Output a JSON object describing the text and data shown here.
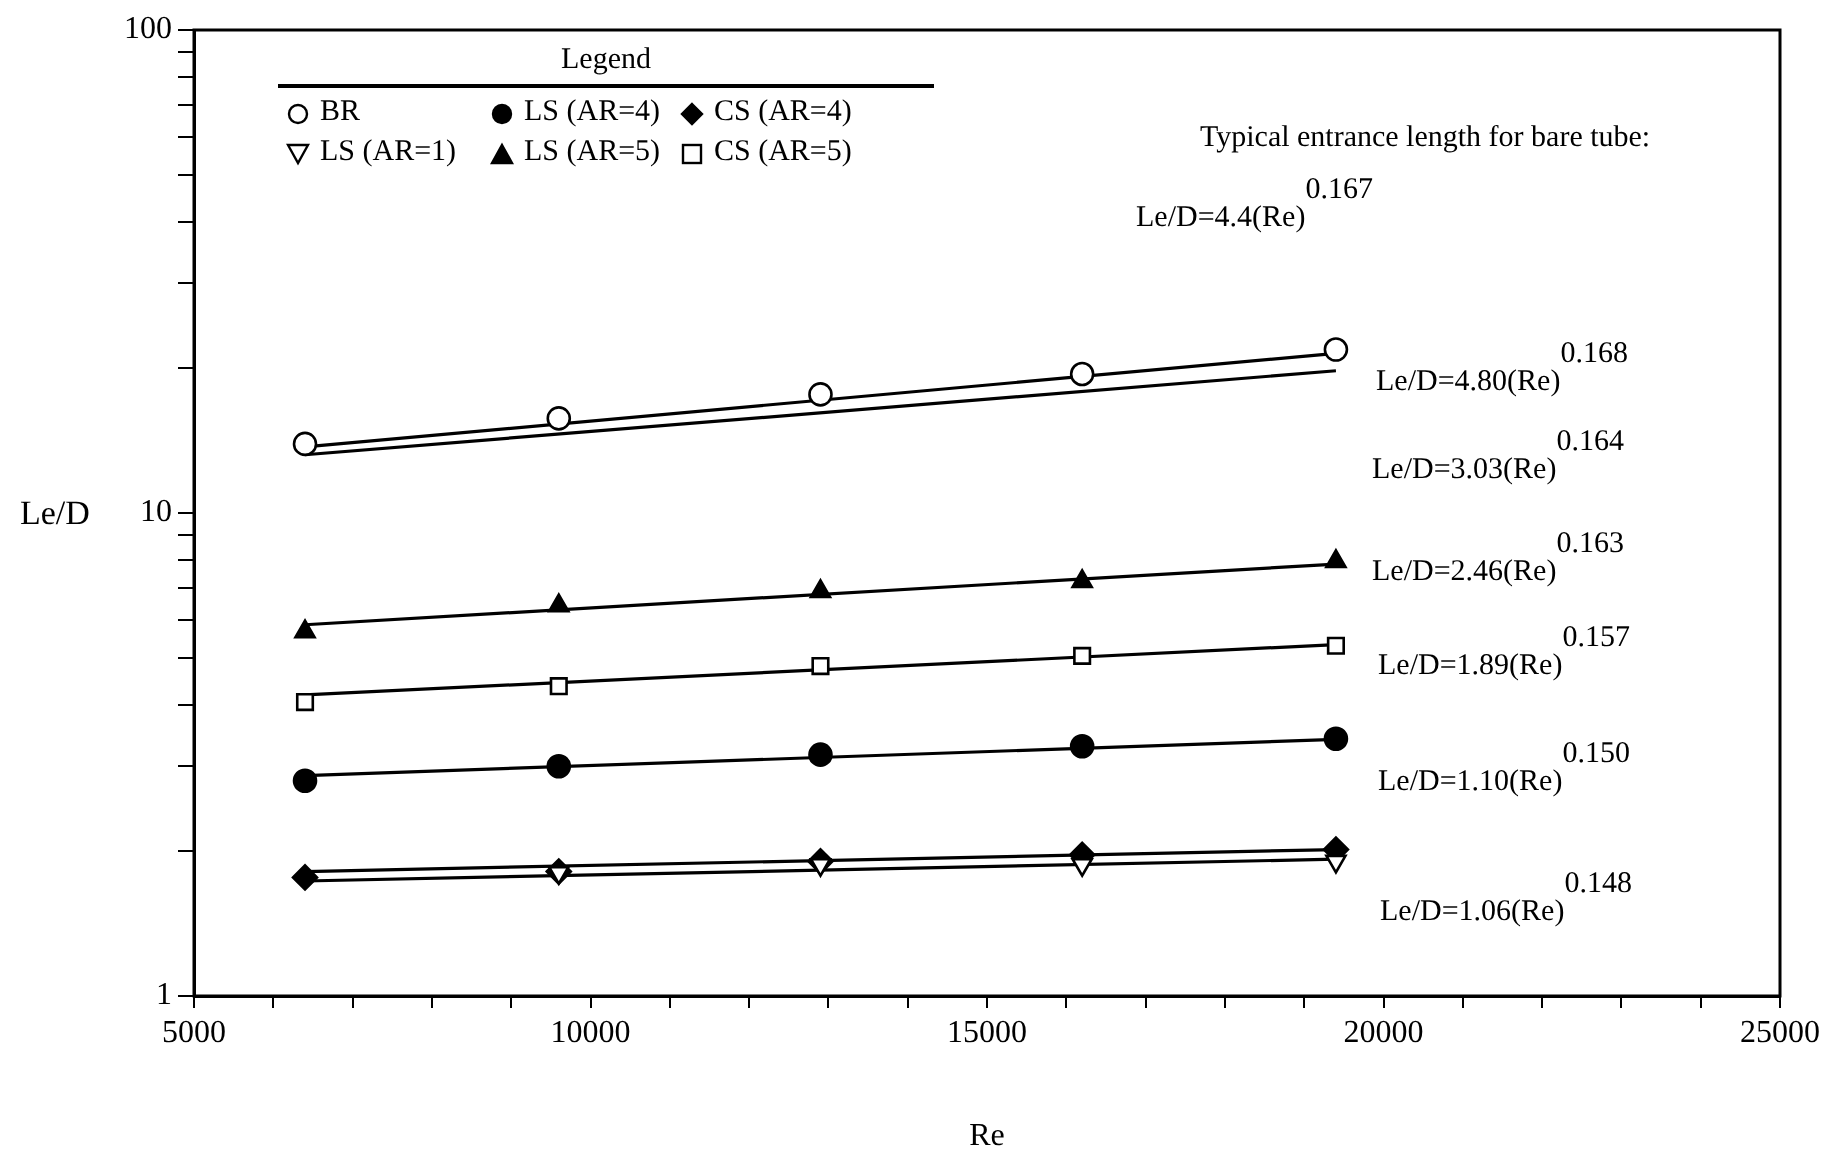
{
  "chart_data": {
    "type": "scatter",
    "xlabel": "Re",
    "ylabel": "Le/D",
    "legend_title": "Legend",
    "legend": "top left",
    "grid": false,
    "log": "y",
    "xlim": [
      5000,
      25000
    ],
    "xticks": [
      5000,
      {
        "value": 6000,
        "label": null
      },
      {
        "value": 7000,
        "label": null
      },
      {
        "value": 8000,
        "label": null
      },
      {
        "value": 9000,
        "label": null
      },
      10000,
      {
        "value": 11000,
        "label": null
      },
      {
        "value": 12000,
        "label": null
      },
      {
        "value": 13000,
        "label": null
      },
      {
        "value": 14000,
        "label": null
      },
      15000,
      {
        "value": 16000,
        "label": null
      },
      {
        "value": 17000,
        "label": null
      },
      {
        "value": 18000,
        "label": null
      },
      {
        "value": 19000,
        "label": null
      },
      20000,
      {
        "value": 21000,
        "label": null
      },
      {
        "value": 22000,
        "label": null
      },
      {
        "value": 23000,
        "label": null
      },
      {
        "value": 24000,
        "label": null
      },
      25000
    ],
    "ylim": [
      1,
      100
    ],
    "yticks": [
      1,
      {
        "value": 2,
        "label": null
      },
      {
        "value": 3,
        "label": null
      },
      {
        "value": 4,
        "label": null
      },
      {
        "value": 5,
        "label": null
      },
      {
        "value": 6,
        "label": null
      },
      {
        "value": 7,
        "label": null
      },
      {
        "value": 8,
        "label": null
      },
      {
        "value": 9,
        "label": null
      },
      10,
      {
        "value": 20,
        "label": null
      },
      {
        "value": 30,
        "label": null
      },
      {
        "value": 40,
        "label": null
      },
      {
        "value": 50,
        "label": null
      },
      {
        "value": 60,
        "label": null
      },
      {
        "value": 70,
        "label": null
      },
      {
        "value": 80,
        "label": null
      },
      {
        "value": 90,
        "label": null
      },
      100
    ],
    "x": [
      6400,
      9600,
      12900,
      16200,
      19400
    ],
    "series": [
      {
        "name": "BR",
        "color": "#000000",
        "marker": "circle-open",
        "values": [
          13.9,
          15.7,
          17.6,
          19.4,
          21.8
        ]
      },
      {
        "name": "LS (AR=4)",
        "color": "#000000",
        "marker": "circle",
        "values": [
          2.79,
          2.99,
          3.16,
          3.29,
          3.41
        ]
      },
      {
        "name": "CS (AR=4)",
        "color": "#000000",
        "marker": "diamond",
        "values": [
          1.76,
          1.81,
          1.9,
          1.96,
          2.01
        ]
      },
      {
        "name": "LS (AR=1)",
        "color": "#000000",
        "marker": "triangle-down-open",
        "values": [
          null,
          1.8,
          1.87,
          1.87,
          1.9
        ]
      },
      {
        "name": "LS (AR=5)",
        "color": "#000000",
        "marker": "triangle",
        "values": [
          5.68,
          6.43,
          6.88,
          7.22,
          7.94
        ]
      },
      {
        "name": "CS (AR=5)",
        "color": "#000000",
        "marker": "square-open",
        "values": [
          4.06,
          4.38,
          4.82,
          5.06,
          5.31
        ]
      },
      {
        "type": "line",
        "color": "#000000",
        "marker": "none",
        "values": [
          13.7,
          null,
          null,
          null,
          21.4
        ]
      },
      {
        "type": "line",
        "color": "#000000",
        "marker": "none",
        "values": [
          13.2,
          null,
          null,
          null,
          19.7
        ]
      },
      {
        "type": "line",
        "color": "#000000",
        "marker": "none",
        "values": [
          5.87,
          null,
          null,
          null,
          7.84
        ]
      },
      {
        "type": "line",
        "color": "#000000",
        "marker": "none",
        "values": [
          4.2,
          null,
          null,
          null,
          5.34
        ]
      },
      {
        "type": "line",
        "color": "#000000",
        "marker": "none",
        "values": [
          2.86,
          null,
          null,
          null,
          3.4
        ]
      },
      {
        "type": "line",
        "color": "#000000",
        "marker": "none",
        "values": [
          1.81,
          null,
          null,
          null,
          2.01
        ]
      },
      {
        "type": "line",
        "color": "#000000",
        "marker": "none",
        "values": [
          1.73,
          null,
          null,
          null,
          1.92
        ]
      }
    ],
    "annotations": [
      "Typical entrance length for bare tube:",
      "Le/D=4.4(Re)$^{0.167}$",
      "Le/D=4.80(Re)$^{0.168}$",
      "Le/D=3.03(Re)$^{0.164}$",
      "Le/D=2.46(Re)$^{0.163}$",
      "Le/D=1.89(Re)$^{0.157}$",
      "Le/D=1.10(Re)$^{0.150}$",
      "Le/D=1.06(Re)$^{0.148}$"
    ]
  }
}
